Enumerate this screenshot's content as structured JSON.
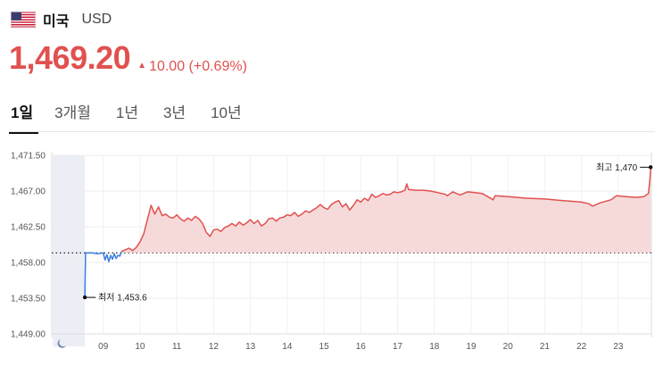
{
  "header": {
    "country": "미국",
    "currency": "USD",
    "flag_icon": "us-flag-icon"
  },
  "price": {
    "value": "1,469.20",
    "change_arrow": "▲",
    "change": "10.00 (+0.69%)",
    "color": "#e0514f"
  },
  "tabs": [
    {
      "label": "1일",
      "active": true
    },
    {
      "label": "3개월",
      "active": false
    },
    {
      "label": "1년",
      "active": false
    },
    {
      "label": "3년",
      "active": false
    },
    {
      "label": "10년",
      "active": false
    }
  ],
  "chart_data": {
    "type": "line",
    "ylim": [
      1449.0,
      1471.5
    ],
    "y_ticks": [
      "1,471.50",
      "1,467.00",
      "1,462.50",
      "1,458.00",
      "1,453.50",
      "1,449.00"
    ],
    "y_tick_values": [
      1471.5,
      1467.0,
      1462.5,
      1458.0,
      1453.5,
      1449.0
    ],
    "x_ticks": [
      "09",
      "10",
      "11",
      "12",
      "13",
      "14",
      "15",
      "16",
      "17",
      "18",
      "19",
      "20",
      "21",
      "22",
      "23"
    ],
    "x_tick_values": [
      9,
      10,
      11,
      12,
      13,
      14,
      15,
      16,
      17,
      18,
      19,
      20,
      21,
      22,
      23
    ],
    "xlim": [
      7.6,
      23.9
    ],
    "reference_value": 1459.2,
    "night_icon": "moon-icon",
    "premarket_color": "#3d7de0",
    "main_color": "#e0514f",
    "fill_color": "#f5d3d3",
    "low_label": "최저 1,453.6",
    "low_point": {
      "x": 8.5,
      "y": 1453.6
    },
    "high_label": "최고 1,470",
    "high_point": {
      "x": 23.88,
      "y": 1470.0
    },
    "premarket_series": [
      [
        8.5,
        1453.6
      ],
      [
        8.52,
        1459.2
      ],
      [
        8.7,
        1459.2
      ],
      [
        8.85,
        1459.1
      ],
      [
        9.0,
        1459.2
      ],
      [
        9.05,
        1458.3
      ],
      [
        9.1,
        1459.0
      ],
      [
        9.15,
        1458.1
      ],
      [
        9.2,
        1458.9
      ],
      [
        9.25,
        1458.4
      ],
      [
        9.3,
        1459.1
      ],
      [
        9.35,
        1458.5
      ],
      [
        9.4,
        1458.9
      ],
      [
        9.45,
        1458.8
      ],
      [
        9.5,
        1459.4
      ]
    ],
    "main_series": [
      [
        9.5,
        1459.4
      ],
      [
        9.6,
        1459.6
      ],
      [
        9.7,
        1459.8
      ],
      [
        9.8,
        1459.5
      ],
      [
        9.9,
        1459.9
      ],
      [
        10.0,
        1460.6
      ],
      [
        10.1,
        1461.6
      ],
      [
        10.2,
        1463.4
      ],
      [
        10.3,
        1465.2
      ],
      [
        10.4,
        1464.1
      ],
      [
        10.5,
        1465.0
      ],
      [
        10.6,
        1463.9
      ],
      [
        10.7,
        1464.1
      ],
      [
        10.8,
        1463.7
      ],
      [
        10.9,
        1463.6
      ],
      [
        11.0,
        1464.0
      ],
      [
        11.1,
        1463.5
      ],
      [
        11.2,
        1463.2
      ],
      [
        11.3,
        1463.6
      ],
      [
        11.4,
        1463.3
      ],
      [
        11.5,
        1463.8
      ],
      [
        11.6,
        1463.5
      ],
      [
        11.7,
        1462.9
      ],
      [
        11.8,
        1461.8
      ],
      [
        11.9,
        1461.3
      ],
      [
        12.0,
        1462.1
      ],
      [
        12.1,
        1462.2
      ],
      [
        12.2,
        1461.9
      ],
      [
        12.3,
        1462.4
      ],
      [
        12.4,
        1462.6
      ],
      [
        12.5,
        1462.9
      ],
      [
        12.6,
        1462.6
      ],
      [
        12.7,
        1463.1
      ],
      [
        12.8,
        1462.7
      ],
      [
        12.9,
        1463.0
      ],
      [
        13.0,
        1463.4
      ],
      [
        13.1,
        1462.9
      ],
      [
        13.2,
        1463.3
      ],
      [
        13.3,
        1462.6
      ],
      [
        13.4,
        1462.9
      ],
      [
        13.5,
        1463.5
      ],
      [
        13.6,
        1463.6
      ],
      [
        13.7,
        1463.2
      ],
      [
        13.8,
        1463.6
      ],
      [
        13.9,
        1463.7
      ],
      [
        14.0,
        1464.0
      ],
      [
        14.1,
        1463.9
      ],
      [
        14.2,
        1464.3
      ],
      [
        14.3,
        1463.8
      ],
      [
        14.4,
        1464.1
      ],
      [
        14.5,
        1464.5
      ],
      [
        14.6,
        1464.3
      ],
      [
        14.7,
        1464.6
      ],
      [
        14.8,
        1464.9
      ],
      [
        14.9,
        1465.3
      ],
      [
        15.0,
        1464.9
      ],
      [
        15.1,
        1464.7
      ],
      [
        15.2,
        1465.3
      ],
      [
        15.3,
        1465.6
      ],
      [
        15.4,
        1465.8
      ],
      [
        15.5,
        1465.0
      ],
      [
        15.6,
        1465.4
      ],
      [
        15.7,
        1464.6
      ],
      [
        15.8,
        1465.2
      ],
      [
        15.9,
        1465.9
      ],
      [
        16.0,
        1465.6
      ],
      [
        16.1,
        1466.1
      ],
      [
        16.2,
        1465.8
      ],
      [
        16.3,
        1466.6
      ],
      [
        16.4,
        1466.2
      ],
      [
        16.5,
        1466.4
      ],
      [
        16.6,
        1466.7
      ],
      [
        16.7,
        1466.5
      ],
      [
        16.8,
        1466.6
      ],
      [
        16.9,
        1466.9
      ],
      [
        17.0,
        1466.8
      ],
      [
        17.1,
        1466.9
      ],
      [
        17.2,
        1467.1
      ],
      [
        17.25,
        1467.9
      ],
      [
        17.3,
        1467.2
      ],
      [
        17.5,
        1467.1
      ],
      [
        17.7,
        1467.1
      ],
      [
        17.9,
        1467.0
      ],
      [
        18.1,
        1466.8
      ],
      [
        18.3,
        1466.6
      ],
      [
        18.35,
        1466.4
      ],
      [
        18.5,
        1466.9
      ],
      [
        18.7,
        1466.5
      ],
      [
        18.9,
        1466.9
      ],
      [
        19.1,
        1466.8
      ],
      [
        19.3,
        1466.7
      ],
      [
        19.6,
        1465.9
      ],
      [
        19.65,
        1466.4
      ],
      [
        20.0,
        1466.3
      ],
      [
        20.5,
        1466.1
      ],
      [
        21.0,
        1466.0
      ],
      [
        21.5,
        1465.8
      ],
      [
        22.0,
        1465.6
      ],
      [
        22.2,
        1465.4
      ],
      [
        22.3,
        1465.1
      ],
      [
        22.5,
        1465.5
      ],
      [
        22.8,
        1465.9
      ],
      [
        22.95,
        1466.4
      ],
      [
        23.2,
        1466.3
      ],
      [
        23.5,
        1466.2
      ],
      [
        23.7,
        1466.3
      ],
      [
        23.82,
        1466.7
      ],
      [
        23.86,
        1468.5
      ],
      [
        23.88,
        1470.0
      ]
    ]
  }
}
